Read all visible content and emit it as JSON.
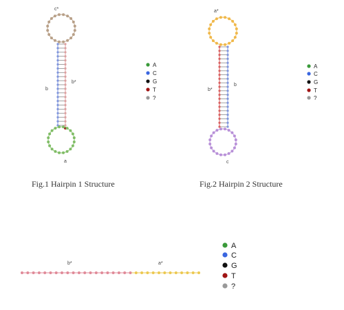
{
  "colors": {
    "A": "#3a9a3a",
    "C": "#3a66e0",
    "G": "#111111",
    "T": "#a01414",
    "?": "#999999",
    "loop_brown": "#b8a088",
    "loop_orange": "#f0b84a",
    "loop_purple": "#b890d8",
    "stem_blue": "#7f95dd",
    "stem_pink": "#dda0a0",
    "stem_red": "#d86060",
    "green_loop": "#80bd66",
    "strand_pink": "#e08a98",
    "strand_yellow": "#ecc850"
  },
  "legend": [
    {
      "key": "A",
      "label": "A"
    },
    {
      "key": "C",
      "label": "C"
    },
    {
      "key": "G",
      "label": "G"
    },
    {
      "key": "T",
      "label": "T"
    },
    {
      "key": "?",
      "label": "?"
    }
  ],
  "fig1": {
    "caption": "Fig.1 Hairpin 1 Structure",
    "labels": {
      "top_loop": "c*",
      "left_stem": "b",
      "right_stem": "b*",
      "bottom_loop": "a"
    }
  },
  "fig2": {
    "caption": "Fig.2 Hairpin 2 Structure",
    "labels": {
      "top_loop": "a*",
      "left_stem": "b*",
      "right_stem": "b",
      "bottom_loop": "c"
    }
  },
  "fig3": {
    "labels": {
      "left": "b*",
      "right": "a*"
    }
  }
}
